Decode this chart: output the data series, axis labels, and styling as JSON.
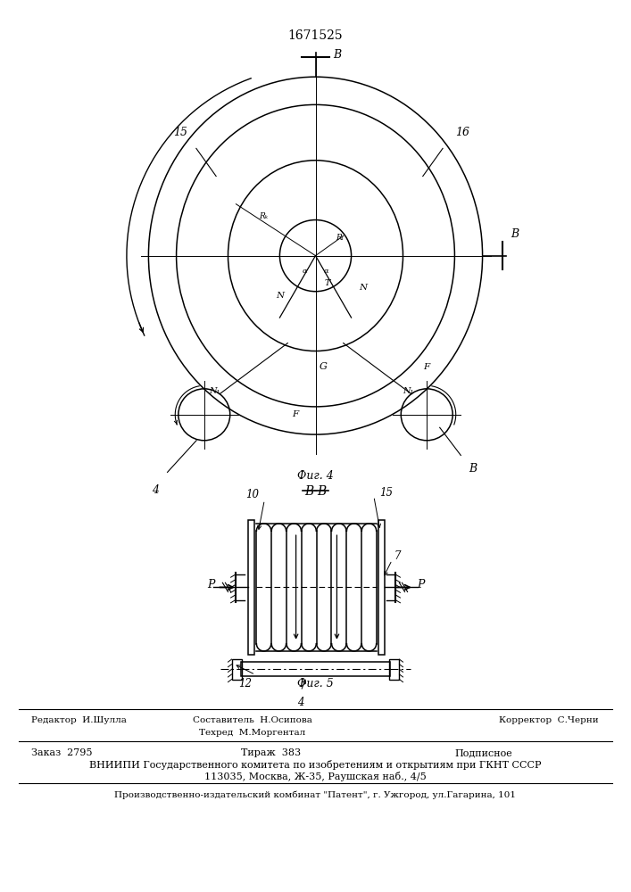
{
  "title": "1671525",
  "bg_color": "#ffffff",
  "line_color": "#000000",
  "footer": {
    "editor": "Редактор  И.Шулла",
    "compiler": "Составитель  Н.Осипова",
    "techred": "Техред  М.Моргентал",
    "corrector": "Корректор  С.Черни",
    "order": "Заказ  2795",
    "circulation": "Тираж  383",
    "subscription": "Подписное",
    "vniipii": "ВНИИПИ Государственного комитета по изобретениям и открытиям при ГКНТ СССР",
    "address": "113035, Москва, Ж-35, Раушская наб., 4/5",
    "publisher": "Производственно-издательский комбинат \"Патент\", г. Ужгород, ул.Гагарина, 101"
  }
}
